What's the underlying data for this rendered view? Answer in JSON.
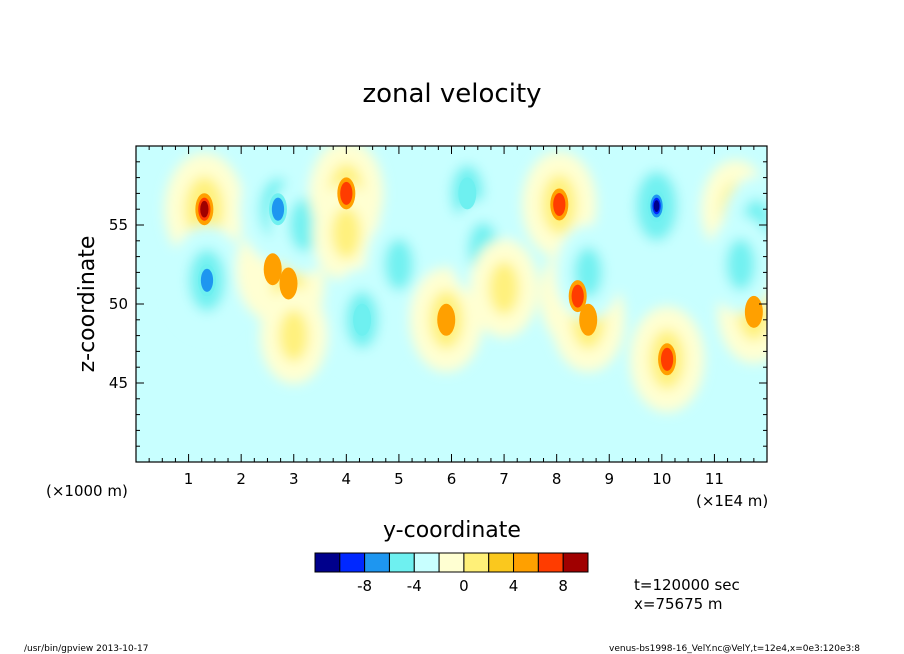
{
  "chart_data": {
    "type": "heatmap",
    "title": "zonal velocity",
    "xlabel": "y-coordinate",
    "ylabel": "z-coordinate",
    "x_multiplier_label": "(×1E4 m)",
    "y_multiplier_label": "(×1000 m)",
    "xlim": [
      0,
      12
    ],
    "ylim": [
      40,
      60
    ],
    "x_ticks": [
      1,
      2,
      3,
      4,
      5,
      6,
      7,
      8,
      9,
      10,
      11
    ],
    "y_ticks": [
      45,
      50,
      55
    ],
    "colorbar": {
      "levels": [
        -10,
        -8,
        -6,
        -4,
        -2,
        0,
        2,
        4,
        6,
        8,
        10
      ],
      "colors": [
        "#00008c",
        "#0028ff",
        "#1e96f0",
        "#6ef0f0",
        "#c8ffff",
        "#ffffd2",
        "#fff078",
        "#fac81e",
        "#ffa000",
        "#ff3c00",
        "#a00000"
      ],
      "tick_labels": [
        "-8",
        "-4",
        "0",
        "4",
        "8"
      ],
      "tick_values": [
        -8,
        -4,
        0,
        4,
        8
      ]
    },
    "features": [
      {
        "y": 1.3,
        "z": 56.0,
        "v": 8.2
      },
      {
        "y": 1.35,
        "z": 51.5,
        "v": -7.0
      },
      {
        "y": 2.6,
        "z": 52.2,
        "v": 5.5
      },
      {
        "y": 2.9,
        "z": 51.3,
        "v": 5.0
      },
      {
        "y": 2.7,
        "z": 56.0,
        "v": -7.0
      },
      {
        "y": 3.2,
        "z": 55.0,
        "v": -3.5
      },
      {
        "y": 4.0,
        "z": 57.0,
        "v": 6.0
      },
      {
        "y": 4.0,
        "z": 54.5,
        "v": 3.0
      },
      {
        "y": 3.0,
        "z": 48.0,
        "v": 3.0
      },
      {
        "y": 4.3,
        "z": 49.0,
        "v": -5.0
      },
      {
        "y": 5.0,
        "z": 52.5,
        "v": -3.0
      },
      {
        "y": 5.9,
        "z": 49.0,
        "v": 5.5
      },
      {
        "y": 6.3,
        "z": 57.0,
        "v": -5.0
      },
      {
        "y": 6.6,
        "z": 53.5,
        "v": -3.5
      },
      {
        "y": 7.0,
        "z": 51.0,
        "v": 3.5
      },
      {
        "y": 8.05,
        "z": 56.3,
        "v": 6.0
      },
      {
        "y": 8.4,
        "z": 50.5,
        "v": 6.5
      },
      {
        "y": 8.6,
        "z": 49.0,
        "v": 5.5
      },
      {
        "y": 8.6,
        "z": 52.0,
        "v": -2.5
      },
      {
        "y": 9.9,
        "z": 56.2,
        "v": -10.0
      },
      {
        "y": 10.1,
        "z": 46.5,
        "v": 6.0
      },
      {
        "y": 11.4,
        "z": 56.0,
        "v": 3.5
      },
      {
        "y": 11.8,
        "z": 55.0,
        "v": -3.0
      },
      {
        "y": 11.75,
        "z": 49.5,
        "v": 5.0
      },
      {
        "y": 11.5,
        "z": 52.5,
        "v": -3.0
      }
    ]
  },
  "info": {
    "time": "t=120000 sec",
    "position": "x=75675 m"
  },
  "footer": {
    "left": "/usr/bin/gpview  2013-10-17",
    "right": "venus-bs1998-16_VelY.nc@VelY,t=12e4,x=0e3:120e3:8"
  }
}
